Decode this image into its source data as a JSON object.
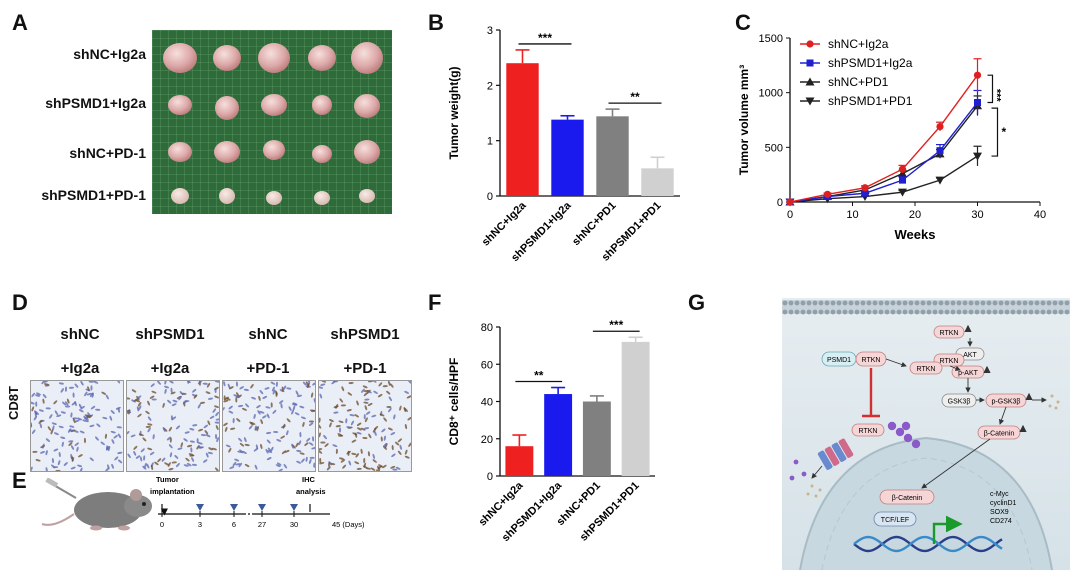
{
  "panels": {
    "A": {
      "label": "A",
      "rows": [
        "shNC+Ig2a",
        "shPSMD1+Ig2a",
        "shNC+PD-1",
        "shPSMD1+PD-1"
      ]
    },
    "B": {
      "label": "B"
    },
    "C": {
      "label": "C"
    },
    "D": {
      "label": "D",
      "groups": [
        {
          "line1": "shNC",
          "line2": "+Ig2a"
        },
        {
          "line1": "shPSMD1",
          "line2": "+Ig2a"
        },
        {
          "line1": "shNC",
          "line2": "+PD-1"
        },
        {
          "line1": "shPSMD1",
          "line2": "+PD-1"
        }
      ],
      "row_label": "CD8T"
    },
    "E": {
      "label": "E",
      "tumor_label_1": "Tumor",
      "tumor_label_2": "implantation",
      "ihc_label_1": "IHC",
      "ihc_label_2": "analysis",
      "ticks": [
        "0",
        "3",
        "6",
        "27",
        "30",
        "45 (Days)"
      ]
    },
    "F": {
      "label": "F"
    },
    "G": {
      "label": "G",
      "nodes": {
        "psmd1": "PSMD1",
        "rtkn_a": "RTKN",
        "rtkn_b": "RTKN",
        "rtkn_c": "RTKN",
        "rtkn_top": "RTKN",
        "rtkn_mid": "RTKN",
        "akt": "AKT",
        "pakt": "p-AKT",
        "gsk": "GSK3β",
        "pgsk": "p-GSK3β",
        "bcat": "β-Catenin",
        "bcat_nuc": "β-Catenin",
        "tcf": "TCF/LEF",
        "targets": [
          "c-Myc",
          "cyclinD1",
          "SOX9",
          "CD274"
        ]
      }
    }
  },
  "chart_data": [
    {
      "id": "B",
      "type": "bar",
      "categories": [
        "shNC+Ig2a",
        "shPSMD1+Ig2a",
        "shNC+PD1",
        "shPSMD1+PD1"
      ],
      "values": [
        2.4,
        1.38,
        1.44,
        0.5
      ],
      "errors": [
        0.24,
        0.07,
        0.13,
        0.2
      ],
      "colors": [
        "#ee2020",
        "#1a1aee",
        "#808080",
        "#d0d0d0"
      ],
      "ylabel": "Tumor weight(g)",
      "ylim": [
        0,
        3
      ],
      "yticks": [
        "0",
        "1",
        "2",
        "3"
      ],
      "significance": [
        {
          "from": 0,
          "to": 1,
          "label": "***"
        },
        {
          "from": 2,
          "to": 3,
          "label": "**"
        }
      ]
    },
    {
      "id": "C",
      "type": "line",
      "x": [
        0,
        6,
        12,
        18,
        24,
        30
      ],
      "series": [
        {
          "name": "shNC+Ig2a",
          "values": [
            0,
            70,
            130,
            300,
            690,
            1160
          ],
          "errors": [
            0,
            12,
            18,
            35,
            40,
            150
          ],
          "color": "#e02020",
          "marker": "circle"
        },
        {
          "name": "shPSMD1+Ig2a",
          "values": [
            0,
            50,
            80,
            200,
            470,
            910
          ],
          "errors": [
            0,
            10,
            15,
            30,
            55,
            110
          ],
          "color": "#2020d0",
          "marker": "square"
        },
        {
          "name": "shNC+PD1",
          "values": [
            0,
            50,
            110,
            260,
            440,
            880
          ],
          "errors": [
            0,
            10,
            15,
            30,
            40,
            90
          ],
          "color": "#222222",
          "marker": "triangle-up"
        },
        {
          "name": "shPSMD1+PD1",
          "values": [
            0,
            30,
            50,
            90,
            200,
            420
          ],
          "errors": [
            0,
            5,
            10,
            15,
            20,
            90
          ],
          "color": "#222222",
          "marker": "triangle-down"
        }
      ],
      "xlabel": "Weeks",
      "ylabel": "Tumor volume mm³",
      "xlim": [
        0,
        40
      ],
      "ylim": [
        0,
        1500
      ],
      "xticks": [
        "0",
        "10",
        "20",
        "30",
        "40"
      ],
      "yticks": [
        "0",
        "500",
        "1000",
        "1500"
      ],
      "significance": [
        "***",
        "*"
      ]
    },
    {
      "id": "F",
      "type": "bar",
      "categories": [
        "shNC+Ig2a",
        "shPSMD1+Ig2a",
        "shNC+PD1",
        "shPSMD1+PD1"
      ],
      "values": [
        16,
        44,
        40,
        72
      ],
      "errors": [
        6,
        3.5,
        3,
        2.5
      ],
      "colors": [
        "#ee2020",
        "#1a1aee",
        "#808080",
        "#d0d0d0"
      ],
      "ylabel": "CD8⁺ cells/HPF",
      "ylim": [
        0,
        80
      ],
      "yticks": [
        "0",
        "20",
        "40",
        "60",
        "80"
      ],
      "significance": [
        {
          "from": 0,
          "to": 1,
          "label": "**"
        },
        {
          "from": 2,
          "to": 3,
          "label": "***"
        }
      ]
    }
  ]
}
